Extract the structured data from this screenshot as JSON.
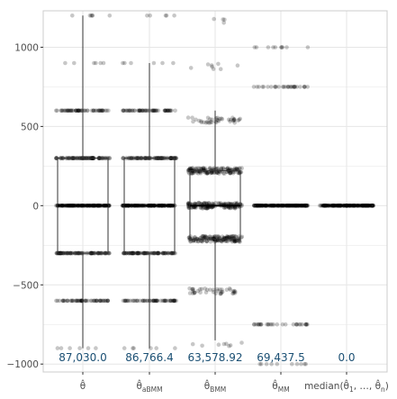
{
  "chart_data": {
    "type": "box-jitter",
    "title": "",
    "xlabel": "",
    "ylabel": "",
    "ylim": [
      -1050,
      1230
    ],
    "y_ticks": [
      -1000,
      -500,
      0,
      500,
      1000
    ],
    "y_tick_labels": [
      "−1000",
      "−500",
      "0",
      "500",
      "1000"
    ],
    "grid": true,
    "categories": [
      "θ̂",
      "θ̂ aBMM",
      "θ̂ BMM",
      "θ̂ MM",
      "median(θ̂ 1, …, θ̂ n)"
    ],
    "category_labels": [
      {
        "base": "θ̂",
        "sub": ""
      },
      {
        "base": "θ̂",
        "sub": "aBMM"
      },
      {
        "base": "θ̂",
        "sub": "BMM"
      },
      {
        "base": "θ̂",
        "sub": "MM"
      },
      {
        "base": "median(θ̂",
        "sub": "1",
        "mid": ", …, θ̂",
        "sub2": "n",
        "tail": ")"
      }
    ],
    "mse_labels": [
      "87,030.0",
      "86,766.4",
      "63,578.92",
      "69,437.5",
      "0.0"
    ],
    "boxes": [
      {
        "q1": -300,
        "median": 0,
        "q3": 300,
        "whisker_low": -900,
        "whisker_high": 1200
      },
      {
        "q1": -300,
        "median": 0,
        "q3": 300,
        "whisker_low": -900,
        "whisker_high": 900
      },
      {
        "q1": -210,
        "median": 0,
        "q3": 220,
        "whisker_low": -850,
        "whisker_high": 600
      },
      {
        "q1": 0,
        "median": 0,
        "q3": 0,
        "whisker_low": 0,
        "whisker_high": 0
      },
      {
        "q1": 0,
        "median": 0,
        "q3": 0,
        "whisker_low": 0,
        "whisker_high": 0
      }
    ],
    "point_levels": [
      [
        {
          "y": 1200,
          "n": 6
        },
        {
          "y": 900,
          "n": 6
        },
        {
          "y": 600,
          "n": 60
        },
        {
          "y": 300,
          "n": 90
        },
        {
          "y": 0,
          "n": 160
        },
        {
          "y": -300,
          "n": 90
        },
        {
          "y": -600,
          "n": 60
        },
        {
          "y": -900,
          "n": 6
        }
      ],
      [
        {
          "y": 1200,
          "n": 5
        },
        {
          "y": 900,
          "n": 6
        },
        {
          "y": 600,
          "n": 60
        },
        {
          "y": 300,
          "n": 90
        },
        {
          "y": 0,
          "n": 160
        },
        {
          "y": -300,
          "n": 90
        },
        {
          "y": -600,
          "n": 60
        },
        {
          "y": -900,
          "n": 6
        }
      ],
      [
        {
          "y": 1170,
          "n": 4
        },
        {
          "y": 880,
          "n": 8
        },
        {
          "y": 540,
          "n": 40
        },
        {
          "y": 220,
          "n": 150
        },
        {
          "y": 0,
          "n": 160
        },
        {
          "y": -210,
          "n": 150
        },
        {
          "y": -540,
          "n": 40
        },
        {
          "y": -870,
          "n": 8
        }
      ],
      [
        {
          "y": 1000,
          "n": 10
        },
        {
          "y": 750,
          "n": 30
        },
        {
          "y": 0,
          "n": 200
        },
        {
          "y": -750,
          "n": 30
        },
        {
          "y": -1000,
          "n": 10
        }
      ],
      [
        {
          "y": 0,
          "n": 200
        }
      ]
    ],
    "colors": {
      "point": "#000000",
      "box": "#333333",
      "grid": "#e6e6e6",
      "frame": "#cccccc",
      "mse_text": "#1a4f73",
      "tick_text": "#4d4d4d"
    }
  }
}
